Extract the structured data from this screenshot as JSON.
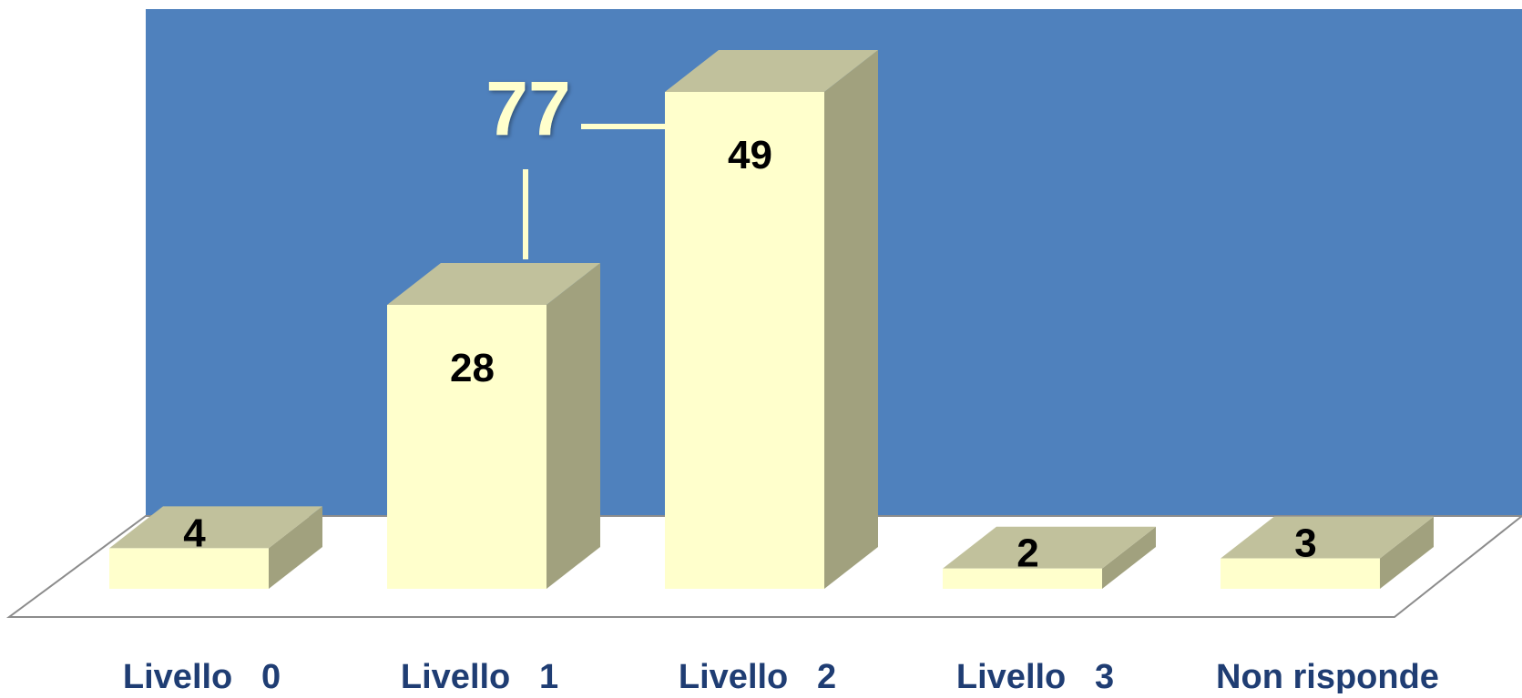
{
  "chart_data": {
    "type": "bar",
    "categories": [
      "Livello   0",
      "Livello   1",
      "Livello   2",
      "Livello   3",
      "Non risponde"
    ],
    "values": [
      4,
      28,
      49,
      2,
      3
    ],
    "data_labels": [
      "4",
      "28",
      "49",
      "2",
      "3"
    ],
    "annotation": {
      "text": "77",
      "connects_categories": [
        1,
        2
      ]
    },
    "title": "",
    "xlabel": "",
    "ylabel": "",
    "ylim": [
      0,
      49
    ],
    "grid": false,
    "legend": "none",
    "style": "3d-columns",
    "colors": {
      "wall": "#4f81bd",
      "floor": "#ffffff",
      "floor_edge": "#8c8c8c",
      "bar_front": "#ffffcc",
      "bar_top": "#c1c19c",
      "bar_side": "#a1a17e",
      "category_label": "#1f3d73",
      "data_label": "#000000",
      "annotation": "#ffffcc"
    }
  }
}
